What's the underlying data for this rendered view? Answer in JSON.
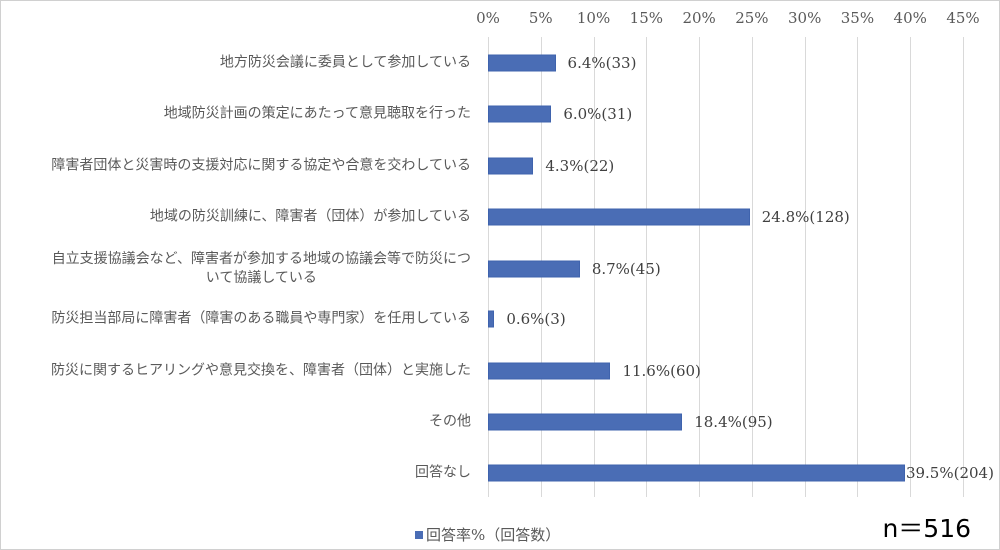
{
  "chart_data": {
    "type": "bar",
    "orientation": "horizontal",
    "title": "",
    "xlabel": "",
    "ylabel": "",
    "xlim": [
      0,
      45
    ],
    "x_ticks": [
      "0%",
      "5%",
      "10%",
      "15%",
      "20%",
      "25%",
      "30%",
      "35%",
      "40%",
      "45%"
    ],
    "x_tick_values": [
      0,
      5,
      10,
      15,
      20,
      25,
      30,
      35,
      40,
      45
    ],
    "grid": true,
    "legend_position": "bottom-left",
    "categories": [
      "地方防災会議に委員として参加している",
      "地域防災計画の策定にあたって意見聴取を行った",
      "障害者団体と災害時の支援対応に関する協定や合意を交わしている",
      "地域の防災訓練に、障害者（団体）が参加している",
      "自立支援協議会など、障害者が参加する地域の協議会等で防災について協議している",
      "防災担当部局に障害者（障害のある職員や専門家）を任用している",
      "防災に関するヒアリングや意見交換を、障害者（団体）と実施した",
      "その他",
      "回答なし"
    ],
    "series": [
      {
        "name": "回答率%（回答数）",
        "color": "#4a6db5",
        "values": [
          6.4,
          6.0,
          4.3,
          24.8,
          8.7,
          0.6,
          11.6,
          18.4,
          39.5
        ],
        "counts": [
          33,
          31,
          22,
          128,
          45,
          3,
          60,
          95,
          204
        ]
      }
    ],
    "data_labels": [
      "6.4%(33)",
      "6.0%(31)",
      "4.3%(22)",
      "24.8%(128)",
      "8.7%(45)",
      "0.6%(3)",
      "11.6%(60)",
      "18.4%(95)",
      "39.5%(204)"
    ],
    "annotation": "n＝516"
  },
  "axis": {
    "ticks": [
      "0%",
      "5%",
      "10%",
      "15%",
      "20%",
      "25%",
      "30%",
      "35%",
      "40%",
      "45%"
    ]
  },
  "rows": [
    {
      "line1": "地方防災会議に委員として参加している",
      "line2": "",
      "value": 6.4,
      "label": "6.4%(33)"
    },
    {
      "line1": "地域防災計画の策定にあたって意見聴取を行った",
      "line2": "",
      "value": 6.0,
      "label": "6.0%(31)"
    },
    {
      "line1": "障害者団体と災害時の支援対応に関する協定や合意を交わしている",
      "line2": "",
      "value": 4.3,
      "label": "4.3%(22)"
    },
    {
      "line1": "地域の防災訓練に、障害者（団体）が参加している",
      "line2": "",
      "value": 24.8,
      "label": "24.8%(128)"
    },
    {
      "line1": "自立支援協議会など、障害者が参加する地域の協議会等で防災につ",
      "line2": "いて協議している",
      "value": 8.7,
      "label": "8.7%(45)"
    },
    {
      "line1": "防災担当部局に障害者（障害のある職員や専門家）を任用している",
      "line2": "",
      "value": 0.6,
      "label": "0.6%(3)"
    },
    {
      "line1": "防災に関するヒアリングや意見交換を、障害者（団体）と実施した",
      "line2": "",
      "value": 11.6,
      "label": "11.6%(60)"
    },
    {
      "line1": "その他",
      "line2": "",
      "value": 18.4,
      "label": "18.4%(95)"
    },
    {
      "line1": "回答なし",
      "line2": "",
      "value": 39.5,
      "label": "39.5%(204)"
    }
  ],
  "legend": {
    "label": "回答率%（回答数）",
    "color": "#4a6db5"
  },
  "sample_size": "n＝516"
}
